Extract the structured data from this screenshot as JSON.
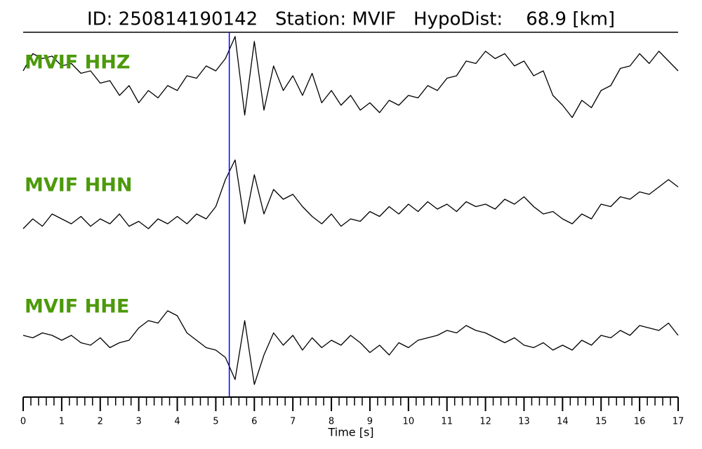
{
  "chart_data": {
    "type": "line",
    "title": "ID: 250814190142   Station: MVIF   HypoDist:    68.9 [km]",
    "xlabel": "Time [s]",
    "xlim": [
      0,
      17
    ],
    "xticks": [
      0,
      1,
      2,
      3,
      4,
      5,
      6,
      7,
      8,
      9,
      10,
      11,
      12,
      13,
      14,
      15,
      16,
      17
    ],
    "minor_ticks_per_interval": 5,
    "ylim": [
      -1,
      1
    ],
    "label_color": "#4c9a0a",
    "pick_time": 5.35,
    "pick_color": "#0000ff",
    "x": [
      0,
      0.25,
      0.5,
      0.75,
      1,
      1.25,
      1.5,
      1.75,
      2,
      2.25,
      2.5,
      2.75,
      3,
      3.25,
      3.5,
      3.75,
      4,
      4.25,
      4.5,
      4.75,
      5,
      5.25,
      5.5,
      5.75,
      6,
      6.25,
      6.5,
      6.75,
      7,
      7.25,
      7.5,
      7.75,
      8,
      8.25,
      8.5,
      8.75,
      9,
      9.25,
      9.5,
      9.75,
      10,
      10.25,
      10.5,
      10.75,
      11,
      11.25,
      11.5,
      11.75,
      12,
      12.25,
      12.5,
      12.75,
      13,
      13.25,
      13.5,
      13.75,
      14,
      14.25,
      14.5,
      14.75,
      15,
      15.25,
      15.5,
      15.75,
      16,
      16.25,
      16.5,
      16.75,
      17
    ],
    "series": [
      {
        "name": "MVIF HHZ",
        "color": "#000000",
        "values": [
          0.2,
          0.55,
          0.45,
          0.5,
          0.3,
          0.35,
          0.15,
          0.2,
          -0.05,
          0.0,
          -0.3,
          -0.1,
          -0.45,
          -0.2,
          -0.35,
          -0.1,
          -0.2,
          0.1,
          0.05,
          0.3,
          0.2,
          0.45,
          0.9,
          -0.7,
          0.8,
          -0.6,
          0.3,
          -0.2,
          0.1,
          -0.3,
          0.15,
          -0.45,
          -0.2,
          -0.5,
          -0.3,
          -0.6,
          -0.45,
          -0.65,
          -0.4,
          -0.5,
          -0.3,
          -0.35,
          -0.1,
          -0.2,
          0.05,
          0.1,
          0.4,
          0.35,
          0.6,
          0.45,
          0.55,
          0.3,
          0.4,
          0.1,
          0.2,
          -0.3,
          -0.5,
          -0.75,
          -0.4,
          -0.55,
          -0.2,
          -0.1,
          0.25,
          0.3,
          0.55,
          0.35,
          0.6,
          0.4,
          0.2
        ]
      },
      {
        "name": "MVIF HHN",
        "color": "#000000",
        "values": [
          -0.4,
          -0.2,
          -0.35,
          -0.1,
          -0.2,
          -0.3,
          -0.15,
          -0.35,
          -0.2,
          -0.3,
          -0.1,
          -0.35,
          -0.25,
          -0.4,
          -0.2,
          -0.3,
          -0.15,
          -0.3,
          -0.1,
          -0.2,
          0.05,
          0.6,
          1.0,
          -0.3,
          0.7,
          -0.1,
          0.4,
          0.2,
          0.3,
          0.05,
          -0.15,
          -0.3,
          -0.1,
          -0.35,
          -0.2,
          -0.25,
          -0.05,
          -0.15,
          0.05,
          -0.1,
          0.1,
          -0.05,
          0.15,
          0.0,
          0.1,
          -0.05,
          0.15,
          0.05,
          0.1,
          0.0,
          0.2,
          0.1,
          0.25,
          0.05,
          -0.1,
          -0.05,
          -0.2,
          -0.3,
          -0.1,
          -0.2,
          0.1,
          0.05,
          0.25,
          0.2,
          0.35,
          0.3,
          0.45,
          0.6,
          0.45
        ]
      },
      {
        "name": "MVIF HHE",
        "color": "#000000",
        "values": [
          0.1,
          0.05,
          0.15,
          0.1,
          0.0,
          0.1,
          -0.05,
          -0.1,
          0.05,
          -0.15,
          -0.05,
          0.0,
          0.25,
          0.4,
          0.35,
          0.6,
          0.5,
          0.15,
          0.0,
          -0.15,
          -0.2,
          -0.35,
          -0.8,
          0.4,
          -0.9,
          -0.3,
          0.15,
          -0.1,
          0.1,
          -0.2,
          0.05,
          -0.15,
          0.0,
          -0.1,
          0.1,
          -0.05,
          -0.25,
          -0.1,
          -0.3,
          -0.05,
          -0.15,
          0.0,
          0.05,
          0.1,
          0.2,
          0.15,
          0.3,
          0.2,
          0.15,
          0.05,
          -0.05,
          0.05,
          -0.1,
          -0.15,
          -0.05,
          -0.2,
          -0.1,
          -0.2,
          0.0,
          -0.1,
          0.1,
          0.05,
          0.2,
          0.1,
          0.3,
          0.25,
          0.2,
          0.35,
          0.1
        ]
      }
    ]
  }
}
